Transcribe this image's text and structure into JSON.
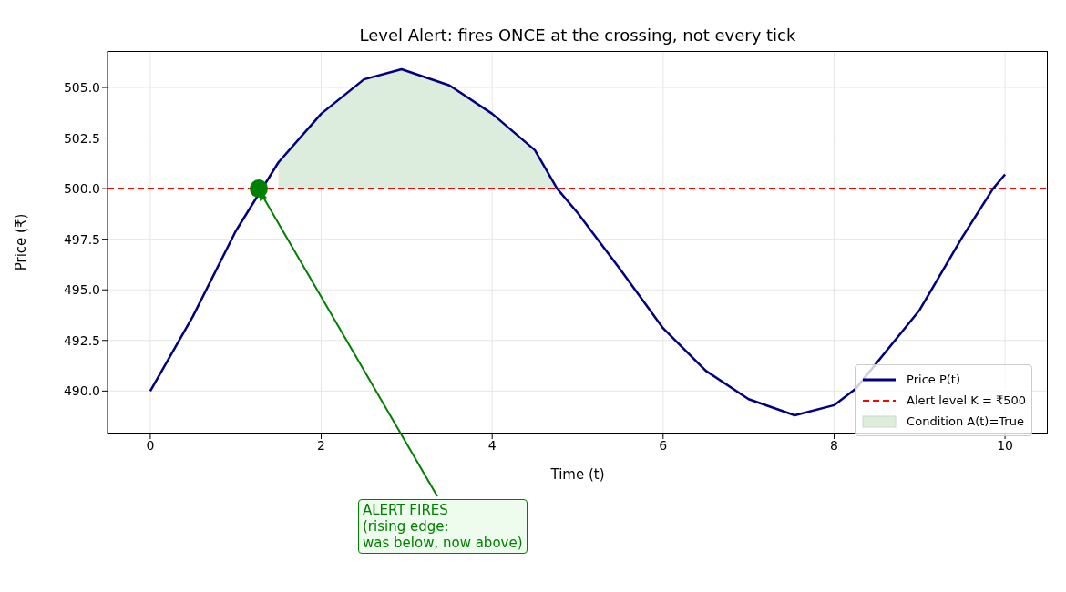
{
  "chart_data": {
    "type": "line",
    "title": "Level Alert: fires ONCE at the crossing, not every tick",
    "xlabel": "Time (t)",
    "ylabel": "Price (₹)",
    "x": [
      0,
      0.5,
      1,
      1.5,
      2,
      2.5,
      2.94,
      3.5,
      4,
      4.5,
      4.76,
      5,
      5.5,
      6,
      6.5,
      7,
      7.54,
      8,
      8.25,
      9,
      9.5,
      9.86,
      10
    ],
    "series": [
      {
        "name": "Price P(t)",
        "color": "#000080",
        "values": [
          490,
          493.7,
          497.9,
          501.3,
          503.7,
          505.4,
          505.9,
          505.1,
          503.7,
          501.9,
          500,
          498.8,
          496.0,
          493.1,
          491.0,
          489.6,
          488.8,
          489.3,
          490.1,
          494.0,
          497.6,
          500,
          500.7
        ]
      },
      {
        "name": "Condition A(t)=True",
        "type": "area",
        "color": "#ddeddd",
        "values": [
          null,
          null,
          null,
          501.3,
          503.7,
          505.4,
          505.9,
          505.1,
          503.7,
          501.9,
          500,
          null,
          null,
          null,
          null,
          null,
          null,
          null,
          null,
          null,
          null,
          null,
          null
        ]
      },
      {
        "type": "scatter",
        "marker": "circle",
        "color": "#008000",
        "x": [
          1.27
        ],
        "values": [
          500
        ]
      }
    ],
    "ref_lines": [
      {
        "axis": "y",
        "value": 500,
        "label": "Alert level K = ₹500",
        "color": "#ff0000",
        "line_style": "dashed"
      }
    ],
    "annotations": [
      {
        "text": "ALERT FIRES\n(rising edge:\nwas below, now above)",
        "x": 1.27,
        "y": 500
      }
    ],
    "xlim": [
      -0.5,
      10.5
    ],
    "xticks": [
      0,
      2,
      4,
      6,
      8,
      10
    ],
    "ylim": [
      487.9,
      506.8
    ],
    "yticks": [
      {
        "value": 490,
        "label": "490.0"
      },
      {
        "value": 492.5,
        "label": "492.5"
      },
      {
        "value": 495,
        "label": "495.0"
      },
      {
        "value": 497.5,
        "label": "497.5"
      },
      {
        "value": 500,
        "label": "500.0"
      },
      {
        "value": 502.5,
        "label": "502.5"
      },
      {
        "value": 505,
        "label": "505.0"
      }
    ],
    "grid": true,
    "legend": "bottom right"
  }
}
